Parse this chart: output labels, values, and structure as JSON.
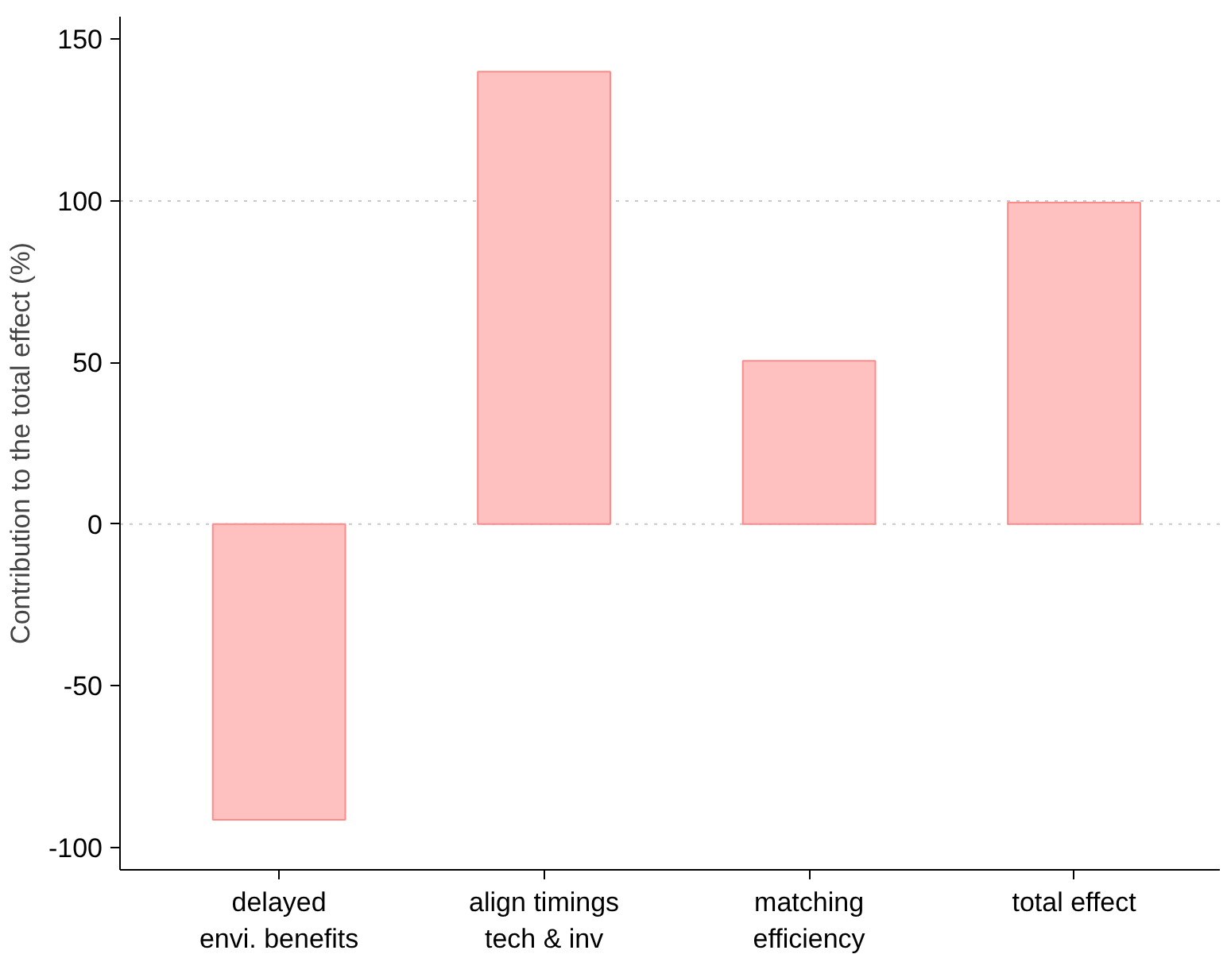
{
  "chart_data": {
    "type": "bar",
    "ylabel": "Contribution to the total effect (%)",
    "categories": [
      "delayed\nenvi. benefits",
      "align timings\ntech & inv",
      "matching\nefficiency",
      "total effect"
    ],
    "values": [
      -91.5,
      140,
      50.5,
      99.5
    ],
    "color": "#ffc0c0",
    "ylim": [
      -107,
      157
    ],
    "yticks": [
      -100,
      -50,
      0,
      50,
      100,
      150
    ],
    "grid": false,
    "ref_lines": [
      {
        "axis": "y",
        "value": 0,
        "label": null,
        "color": "#c8c8c8",
        "line_style": "dotted"
      },
      {
        "axis": "y",
        "value": 100,
        "label": null,
        "color": "#c8c8c8",
        "line_style": "dotted"
      }
    ]
  }
}
